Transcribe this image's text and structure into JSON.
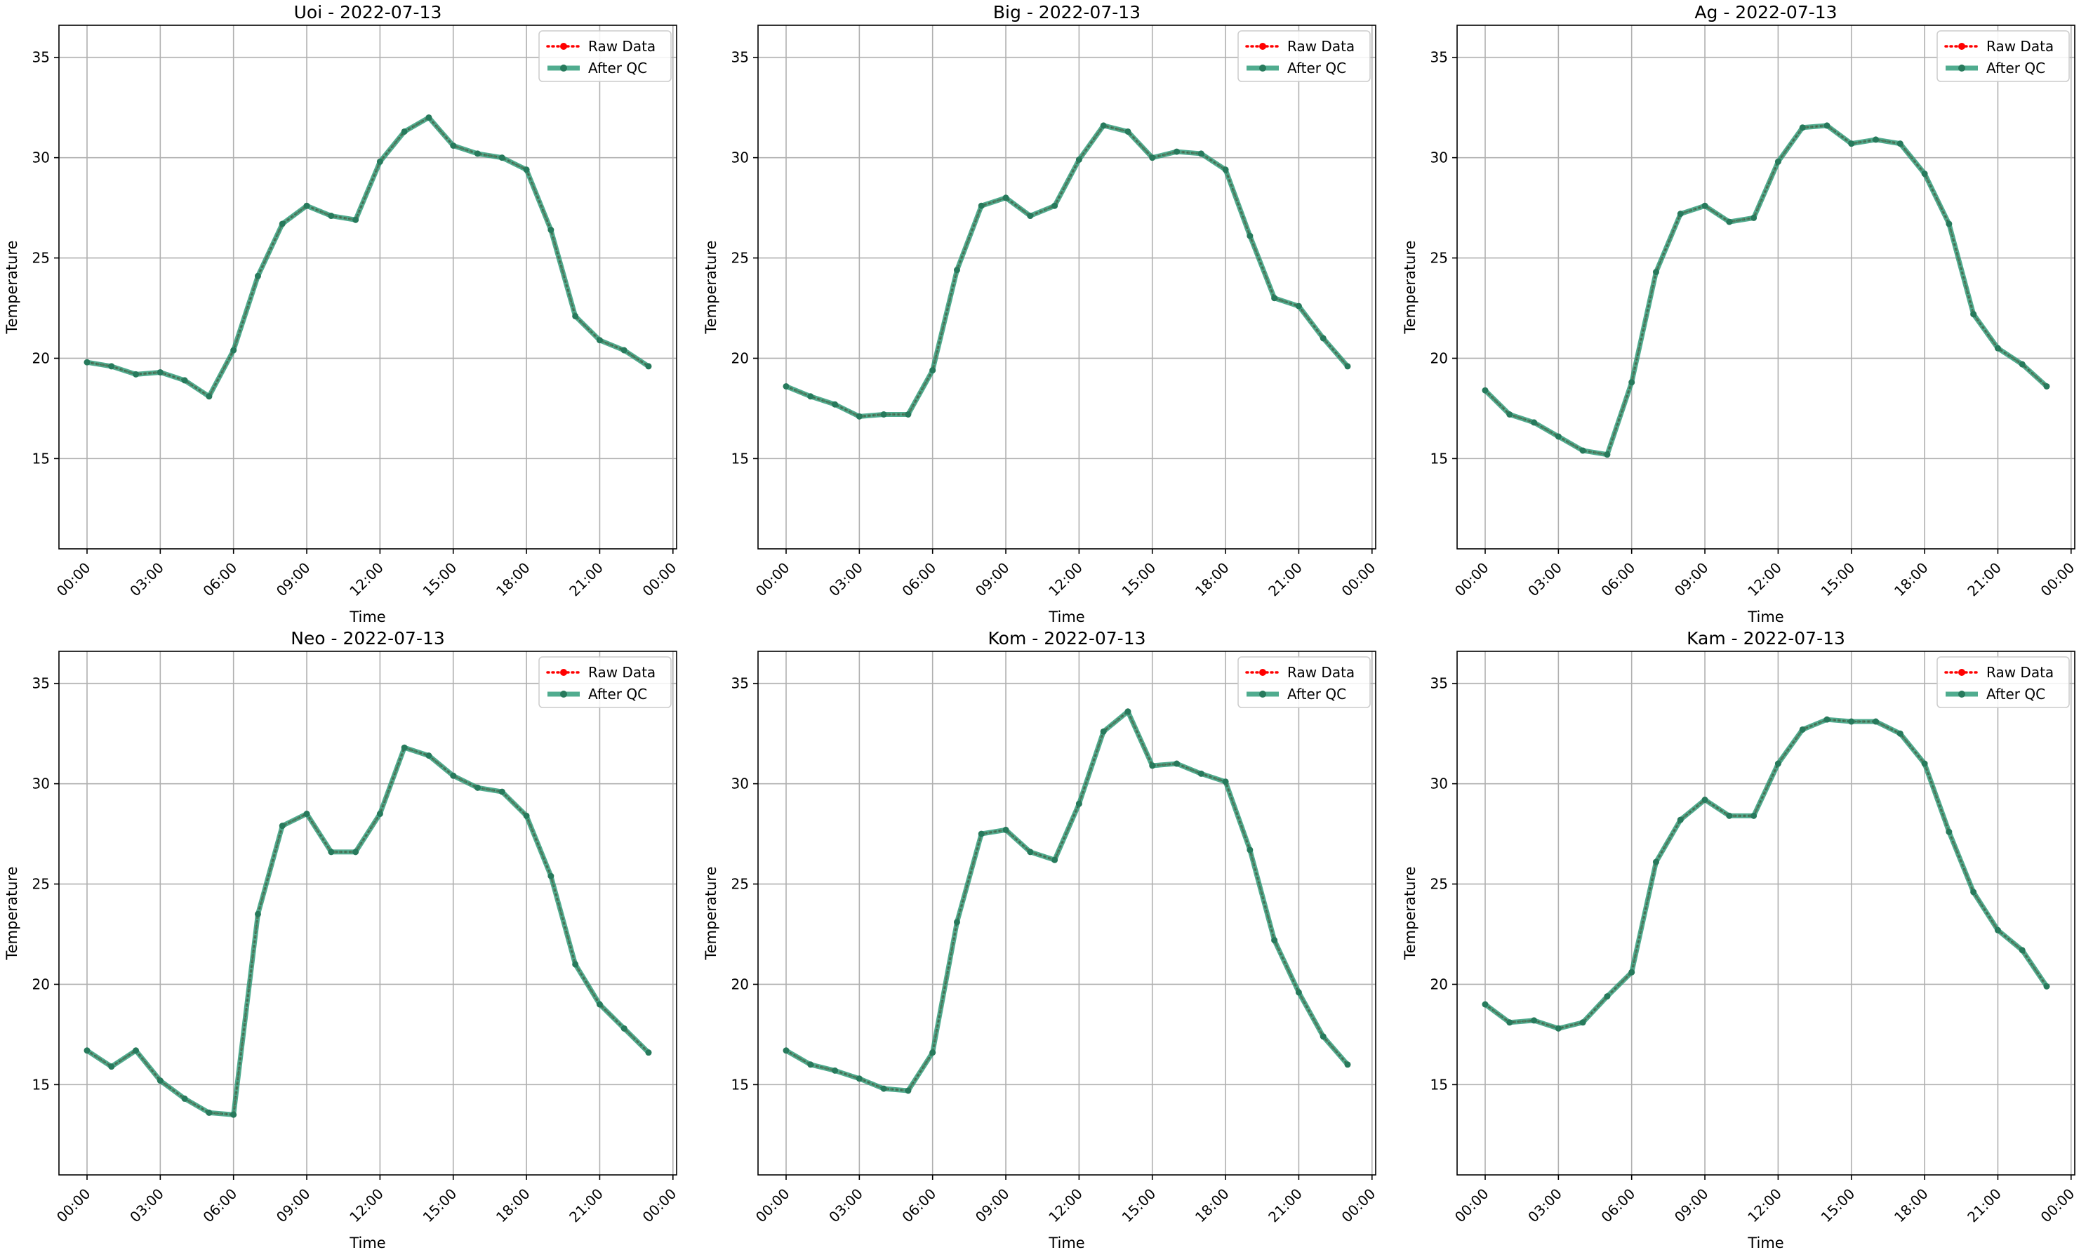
{
  "chart_data": [
    {
      "type": "line",
      "title": "Uoi - 2022-07-13",
      "xlabel": "Time",
      "ylabel": "Temperature",
      "xlim": [
        -1.15,
        24.15
      ],
      "ylim": [
        10.5,
        36.6
      ],
      "x_ticks": [
        0,
        3,
        6,
        9,
        12,
        15,
        18,
        21,
        24
      ],
      "x_tick_labels": [
        "00:00",
        "03:00",
        "06:00",
        "09:00",
        "12:00",
        "15:00",
        "18:00",
        "21:00",
        "00:00"
      ],
      "y_ticks": [
        15,
        20,
        25,
        30,
        35
      ],
      "y_tick_labels": [
        "15",
        "20",
        "25",
        "30",
        "35"
      ],
      "grid": true,
      "legend_position": "top-right",
      "x": [
        "00:00",
        "01:00",
        "02:00",
        "03:00",
        "04:00",
        "05:00",
        "06:00",
        "07:00",
        "08:00",
        "09:00",
        "10:00",
        "11:00",
        "12:00",
        "13:00",
        "14:00",
        "15:00",
        "16:00",
        "17:00",
        "18:00",
        "19:00",
        "20:00",
        "21:00",
        "22:00",
        "23:00"
      ],
      "series": [
        {
          "name": "Raw Data",
          "color": "#ff0000",
          "values": [
            19.8,
            19.6,
            19.2,
            19.3,
            18.9,
            18.1,
            20.4,
            24.1,
            26.7,
            27.6,
            27.1,
            26.9,
            29.8,
            31.3,
            32.0,
            30.6,
            30.2,
            30.0,
            29.4,
            26.4,
            22.1,
            20.9,
            20.4,
            19.6
          ]
        },
        {
          "name": "After QC",
          "color": "#2a9a76",
          "values": [
            19.8,
            19.6,
            19.2,
            19.3,
            18.9,
            18.1,
            20.4,
            24.1,
            26.7,
            27.6,
            27.1,
            26.9,
            29.8,
            31.3,
            32.0,
            30.6,
            30.2,
            30.0,
            29.4,
            26.4,
            22.1,
            20.9,
            20.4,
            19.6
          ]
        }
      ]
    },
    {
      "type": "line",
      "title": "Big - 2022-07-13",
      "xlabel": "Time",
      "ylabel": "Temperature",
      "xlim": [
        -1.15,
        24.15
      ],
      "ylim": [
        10.5,
        36.6
      ],
      "x_ticks": [
        0,
        3,
        6,
        9,
        12,
        15,
        18,
        21,
        24
      ],
      "x_tick_labels": [
        "00:00",
        "03:00",
        "06:00",
        "09:00",
        "12:00",
        "15:00",
        "18:00",
        "21:00",
        "00:00"
      ],
      "y_ticks": [
        15,
        20,
        25,
        30,
        35
      ],
      "y_tick_labels": [
        "15",
        "20",
        "25",
        "30",
        "35"
      ],
      "grid": true,
      "legend_position": "top-right",
      "x": [
        "00:00",
        "01:00",
        "02:00",
        "03:00",
        "04:00",
        "05:00",
        "06:00",
        "07:00",
        "08:00",
        "09:00",
        "10:00",
        "11:00",
        "12:00",
        "13:00",
        "14:00",
        "15:00",
        "16:00",
        "17:00",
        "18:00",
        "19:00",
        "20:00",
        "21:00",
        "22:00",
        "23:00"
      ],
      "series": [
        {
          "name": "Raw Data",
          "color": "#ff0000",
          "values": [
            18.6,
            18.1,
            17.7,
            17.1,
            17.2,
            17.2,
            19.4,
            24.4,
            27.6,
            28.0,
            27.1,
            27.6,
            29.9,
            31.6,
            31.3,
            30.0,
            30.3,
            30.2,
            29.4,
            26.1,
            23.0,
            22.6,
            21.0,
            19.6
          ]
        },
        {
          "name": "After QC",
          "color": "#2a9a76",
          "values": [
            18.6,
            18.1,
            17.7,
            17.1,
            17.2,
            17.2,
            19.4,
            24.4,
            27.6,
            28.0,
            27.1,
            27.6,
            29.9,
            31.6,
            31.3,
            30.0,
            30.3,
            30.2,
            29.4,
            26.1,
            23.0,
            22.6,
            21.0,
            19.6
          ]
        }
      ]
    },
    {
      "type": "line",
      "title": "Ag - 2022-07-13",
      "xlabel": "Time",
      "ylabel": "Temperature",
      "xlim": [
        -1.15,
        24.15
      ],
      "ylim": [
        10.5,
        36.6
      ],
      "x_ticks": [
        0,
        3,
        6,
        9,
        12,
        15,
        18,
        21,
        24
      ],
      "x_tick_labels": [
        "00:00",
        "03:00",
        "06:00",
        "09:00",
        "12:00",
        "15:00",
        "18:00",
        "21:00",
        "00:00"
      ],
      "y_ticks": [
        15,
        20,
        25,
        30,
        35
      ],
      "y_tick_labels": [
        "15",
        "20",
        "25",
        "30",
        "35"
      ],
      "grid": true,
      "legend_position": "top-right",
      "x": [
        "00:00",
        "01:00",
        "02:00",
        "03:00",
        "04:00",
        "05:00",
        "06:00",
        "07:00",
        "08:00",
        "09:00",
        "10:00",
        "11:00",
        "12:00",
        "13:00",
        "14:00",
        "15:00",
        "16:00",
        "17:00",
        "18:00",
        "19:00",
        "20:00",
        "21:00",
        "22:00",
        "23:00"
      ],
      "series": [
        {
          "name": "Raw Data",
          "color": "#ff0000",
          "values": [
            18.4,
            17.2,
            16.8,
            16.1,
            15.4,
            15.2,
            18.8,
            24.3,
            27.2,
            27.6,
            26.8,
            27.0,
            29.8,
            31.5,
            31.6,
            30.7,
            30.9,
            30.7,
            29.2,
            26.7,
            22.2,
            20.5,
            19.7,
            18.6
          ]
        },
        {
          "name": "After QC",
          "color": "#2a9a76",
          "values": [
            18.4,
            17.2,
            16.8,
            16.1,
            15.4,
            15.2,
            18.8,
            24.3,
            27.2,
            27.6,
            26.8,
            27.0,
            29.8,
            31.5,
            31.6,
            30.7,
            30.9,
            30.7,
            29.2,
            26.7,
            22.2,
            20.5,
            19.7,
            18.6
          ]
        }
      ]
    },
    {
      "type": "line",
      "title": "Neo - 2022-07-13",
      "xlabel": "Time",
      "ylabel": "Temperature",
      "xlim": [
        -1.15,
        24.15
      ],
      "ylim": [
        10.5,
        36.6
      ],
      "x_ticks": [
        0,
        3,
        6,
        9,
        12,
        15,
        18,
        21,
        24
      ],
      "x_tick_labels": [
        "00:00",
        "03:00",
        "06:00",
        "09:00",
        "12:00",
        "15:00",
        "18:00",
        "21:00",
        "00:00"
      ],
      "y_ticks": [
        15,
        20,
        25,
        30,
        35
      ],
      "y_tick_labels": [
        "15",
        "20",
        "25",
        "30",
        "35"
      ],
      "grid": true,
      "legend_position": "top-right",
      "x": [
        "00:00",
        "01:00",
        "02:00",
        "03:00",
        "04:00",
        "05:00",
        "06:00",
        "07:00",
        "08:00",
        "09:00",
        "10:00",
        "11:00",
        "12:00",
        "13:00",
        "14:00",
        "15:00",
        "16:00",
        "17:00",
        "18:00",
        "19:00",
        "20:00",
        "21:00",
        "22:00",
        "23:00"
      ],
      "series": [
        {
          "name": "Raw Data",
          "color": "#ff0000",
          "values": [
            16.7,
            15.9,
            16.7,
            15.2,
            14.3,
            13.6,
            13.5,
            23.5,
            27.9,
            28.5,
            26.6,
            26.6,
            28.5,
            31.8,
            31.4,
            30.4,
            29.8,
            29.6,
            28.4,
            25.4,
            21.0,
            19.0,
            17.8,
            16.6
          ]
        },
        {
          "name": "After QC",
          "color": "#2a9a76",
          "values": [
            16.7,
            15.9,
            16.7,
            15.2,
            14.3,
            13.6,
            13.5,
            23.5,
            27.9,
            28.5,
            26.6,
            26.6,
            28.5,
            31.8,
            31.4,
            30.4,
            29.8,
            29.6,
            28.4,
            25.4,
            21.0,
            19.0,
            17.8,
            16.6
          ]
        }
      ]
    },
    {
      "type": "line",
      "title": "Kom - 2022-07-13",
      "xlabel": "Time",
      "ylabel": "Temperature",
      "xlim": [
        -1.15,
        24.15
      ],
      "ylim": [
        10.5,
        36.6
      ],
      "x_ticks": [
        0,
        3,
        6,
        9,
        12,
        15,
        18,
        21,
        24
      ],
      "x_tick_labels": [
        "00:00",
        "03:00",
        "06:00",
        "09:00",
        "12:00",
        "15:00",
        "18:00",
        "21:00",
        "00:00"
      ],
      "y_ticks": [
        15,
        20,
        25,
        30,
        35
      ],
      "y_tick_labels": [
        "15",
        "20",
        "25",
        "30",
        "35"
      ],
      "grid": true,
      "legend_position": "top-right",
      "x": [
        "00:00",
        "01:00",
        "02:00",
        "03:00",
        "04:00",
        "05:00",
        "06:00",
        "07:00",
        "08:00",
        "09:00",
        "10:00",
        "11:00",
        "12:00",
        "13:00",
        "14:00",
        "15:00",
        "16:00",
        "17:00",
        "18:00",
        "19:00",
        "20:00",
        "21:00",
        "22:00",
        "23:00"
      ],
      "series": [
        {
          "name": "Raw Data",
          "color": "#ff0000",
          "values": [
            16.7,
            16.0,
            15.7,
            15.3,
            14.8,
            14.7,
            16.6,
            23.1,
            27.5,
            27.7,
            26.6,
            26.2,
            29.0,
            32.6,
            33.6,
            30.9,
            31.0,
            30.5,
            30.1,
            26.7,
            22.2,
            19.6,
            17.4,
            16.0
          ]
        },
        {
          "name": "After QC",
          "color": "#2a9a76",
          "values": [
            16.7,
            16.0,
            15.7,
            15.3,
            14.8,
            14.7,
            16.6,
            23.1,
            27.5,
            27.7,
            26.6,
            26.2,
            29.0,
            32.6,
            33.6,
            30.9,
            31.0,
            30.5,
            30.1,
            26.7,
            22.2,
            19.6,
            17.4,
            16.0
          ]
        }
      ]
    },
    {
      "type": "line",
      "title": "Kam - 2022-07-13",
      "xlabel": "Time",
      "ylabel": "Temperature",
      "xlim": [
        -1.15,
        24.15
      ],
      "ylim": [
        10.5,
        36.6
      ],
      "x_ticks": [
        0,
        3,
        6,
        9,
        12,
        15,
        18,
        21,
        24
      ],
      "x_tick_labels": [
        "00:00",
        "03:00",
        "06:00",
        "09:00",
        "12:00",
        "15:00",
        "18:00",
        "21:00",
        "00:00"
      ],
      "y_ticks": [
        15,
        20,
        25,
        30,
        35
      ],
      "y_tick_labels": [
        "15",
        "20",
        "25",
        "30",
        "35"
      ],
      "grid": true,
      "legend_position": "top-right",
      "x": [
        "00:00",
        "01:00",
        "02:00",
        "03:00",
        "04:00",
        "05:00",
        "06:00",
        "07:00",
        "08:00",
        "09:00",
        "10:00",
        "11:00",
        "12:00",
        "13:00",
        "14:00",
        "15:00",
        "16:00",
        "17:00",
        "18:00",
        "19:00",
        "20:00",
        "21:00",
        "22:00",
        "23:00"
      ],
      "series": [
        {
          "name": "Raw Data",
          "color": "#ff0000",
          "values": [
            19.0,
            18.1,
            18.2,
            17.8,
            18.1,
            19.4,
            20.6,
            26.1,
            28.2,
            29.2,
            28.4,
            28.4,
            31.0,
            32.7,
            33.2,
            33.1,
            33.1,
            32.5,
            31.0,
            27.6,
            24.6,
            22.7,
            21.7,
            19.9
          ]
        },
        {
          "name": "After QC",
          "color": "#2a9a76",
          "values": [
            19.0,
            18.1,
            18.2,
            17.8,
            18.1,
            19.4,
            20.6,
            26.1,
            28.2,
            29.2,
            28.4,
            28.4,
            31.0,
            32.7,
            33.2,
            33.1,
            33.1,
            32.5,
            31.0,
            27.6,
            24.6,
            22.7,
            21.7,
            19.9
          ]
        }
      ]
    }
  ]
}
